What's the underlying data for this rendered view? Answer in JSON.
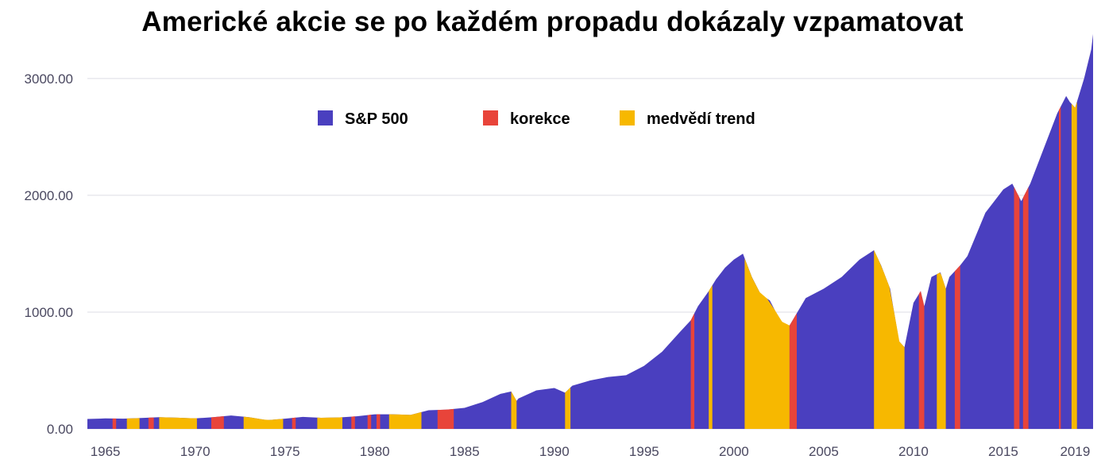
{
  "chart_data": {
    "type": "area",
    "title": "Americké akcie se po každém propadu dokázaly vzpamatovat",
    "xlabel": "",
    "ylabel": "",
    "xlim": [
      1964.0,
      2020.0
    ],
    "ylim": [
      0,
      3400
    ],
    "y_ticks": [
      "0.00",
      "1000.00",
      "2000.00",
      "3000.00"
    ],
    "x_ticks": [
      "1965",
      "1970",
      "1975",
      "1980",
      "1985",
      "1990",
      "1995",
      "2000",
      "2005",
      "2010",
      "2015",
      "2019"
    ],
    "grid": "horizontal",
    "legend_position": "top-left",
    "series": [
      {
        "name": "S&P 500",
        "color": "#4a3fbf",
        "x": [
          1964.0,
          1965.0,
          1966.0,
          1967.0,
          1968.0,
          1969.0,
          1970.0,
          1971.0,
          1972.0,
          1973.0,
          1974.0,
          1975.0,
          1976.0,
          1977.0,
          1978.0,
          1979.0,
          1980.0,
          1981.0,
          1982.0,
          1983.0,
          1984.0,
          1985.0,
          1986.0,
          1987.0,
          1987.6,
          1987.9,
          1988.0,
          1989.0,
          1990.0,
          1990.6,
          1991.0,
          1992.0,
          1993.0,
          1994.0,
          1995.0,
          1996.0,
          1997.0,
          1997.6,
          1998.0,
          1998.6,
          1999.0,
          1999.5,
          2000.0,
          2000.5,
          2001.0,
          2001.5,
          2002.0,
          2002.5,
          2003.0,
          2003.5,
          2004.0,
          2005.0,
          2006.0,
          2007.0,
          2007.8,
          2008.2,
          2008.7,
          2009.2,
          2009.5,
          2010.0,
          2010.4,
          2010.6,
          2011.0,
          2011.5,
          2011.8,
          2012.0,
          2012.6,
          2013.0,
          2014.0,
          2015.0,
          2015.5,
          2016.0,
          2016.5,
          2017.0,
          2018.0,
          2018.5,
          2018.7,
          2019.0,
          2019.5,
          2019.9,
          2020.0
        ],
        "values": [
          85,
          90,
          88,
          93,
          100,
          96,
          90,
          100,
          115,
          100,
          75,
          88,
          103,
          95,
          98,
          108,
          125,
          125,
          120,
          160,
          165,
          180,
          230,
          300,
          320,
          240,
          260,
          330,
          350,
          310,
          370,
          415,
          445,
          460,
          540,
          660,
          830,
          930,
          1050,
          1180,
          1280,
          1380,
          1450,
          1500,
          1300,
          1150,
          1100,
          950,
          860,
          990,
          1120,
          1200,
          1300,
          1450,
          1530,
          1400,
          1200,
          750,
          700,
          1080,
          1180,
          1050,
          1300,
          1340,
          1200,
          1300,
          1400,
          1480,
          1850,
          2050,
          2100,
          1950,
          2100,
          2300,
          2700,
          2850,
          2800,
          2750,
          3000,
          3250,
          3380
        ]
      }
    ],
    "legend": [
      {
        "label": "S&P 500",
        "color": "#4a3fbf"
      },
      {
        "label": "korekce",
        "color": "#e8443a"
      },
      {
        "label": "medvědí trend",
        "color": "#f7b800"
      }
    ],
    "periods": [
      {
        "type": "korekce",
        "start": 1965.4,
        "end": 1965.6
      },
      {
        "type": "medvědí trend",
        "start": 1966.2,
        "end": 1966.9
      },
      {
        "type": "korekce",
        "start": 1967.4,
        "end": 1967.7
      },
      {
        "type": "medvědí trend",
        "start": 1968.0,
        "end": 1970.1
      },
      {
        "type": "korekce",
        "start": 1970.9,
        "end": 1971.6
      },
      {
        "type": "medvědí trend",
        "start": 1972.7,
        "end": 1974.9
      },
      {
        "type": "korekce",
        "start": 1975.4,
        "end": 1975.6
      },
      {
        "type": "medvědí trend",
        "start": 1976.8,
        "end": 1978.2
      },
      {
        "type": "korekce",
        "start": 1978.7,
        "end": 1978.9
      },
      {
        "type": "korekce",
        "start": 1979.6,
        "end": 1979.8
      },
      {
        "type": "korekce",
        "start": 1980.1,
        "end": 1980.3
      },
      {
        "type": "medvědí trend",
        "start": 1980.8,
        "end": 1982.6
      },
      {
        "type": "korekce",
        "start": 1983.5,
        "end": 1984.4
      },
      {
        "type": "medvědí trend",
        "start": 1987.6,
        "end": 1987.9
      },
      {
        "type": "medvědí trend",
        "start": 1990.6,
        "end": 1990.9
      },
      {
        "type": "korekce",
        "start": 1997.6,
        "end": 1997.8
      },
      {
        "type": "medvědí trend",
        "start": 1998.6,
        "end": 1998.8
      },
      {
        "type": "medvědí trend",
        "start": 2000.6,
        "end": 2003.1
      },
      {
        "type": "korekce",
        "start": 2003.1,
        "end": 2003.5
      },
      {
        "type": "medvědí trend",
        "start": 2007.8,
        "end": 2009.5
      },
      {
        "type": "korekce",
        "start": 2010.3,
        "end": 2010.6
      },
      {
        "type": "medvědí trend",
        "start": 2011.3,
        "end": 2011.8
      },
      {
        "type": "korekce",
        "start": 2012.3,
        "end": 2012.6
      },
      {
        "type": "korekce",
        "start": 2015.6,
        "end": 2015.9
      },
      {
        "type": "korekce",
        "start": 2016.1,
        "end": 2016.4
      },
      {
        "type": "korekce",
        "start": 2018.1,
        "end": 2018.2
      },
      {
        "type": "medvědí trend",
        "start": 2018.8,
        "end": 2019.1
      }
    ]
  }
}
